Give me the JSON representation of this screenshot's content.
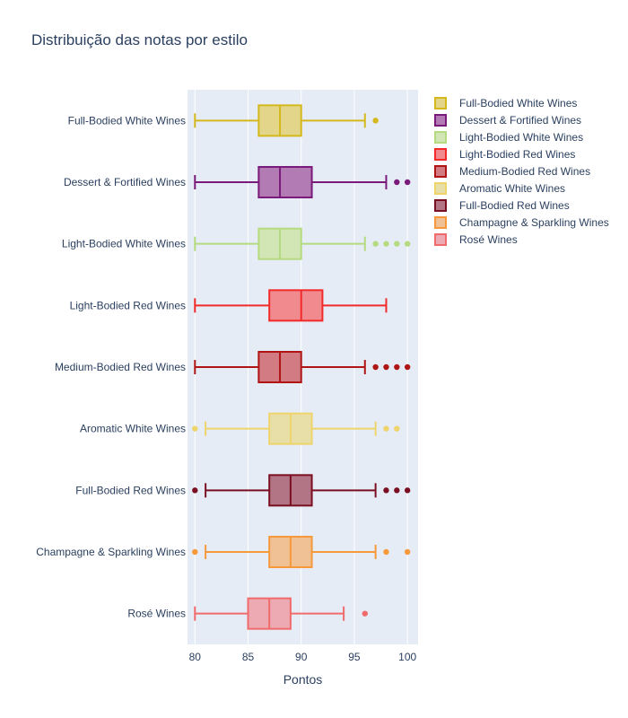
{
  "chart_data": {
    "type": "box",
    "title": "Distribuição das notas por estilo",
    "xlabel": "Pontos",
    "ylabel": "",
    "orientation": "horizontal",
    "xlim": [
      79.3,
      101.0
    ],
    "xticks": [
      80,
      85,
      90,
      95,
      100
    ],
    "grid": true,
    "legend_position": "top-right",
    "series": [
      {
        "name": "Full-Bodied White Wines",
        "min": 80,
        "q1": 86,
        "median": 88,
        "q3": 90,
        "max": 96,
        "outliers": [
          97
        ],
        "color": "#d4b81c",
        "fill": "#e3d68a"
      },
      {
        "name": "Dessert & Fortified Wines",
        "min": 80,
        "q1": 86,
        "median": 88,
        "q3": 91,
        "max": 98,
        "outliers": [
          99,
          100
        ],
        "color": "#7a1a7a",
        "fill": "#b27bb4"
      },
      {
        "name": "Light-Bodied White Wines",
        "min": 80,
        "q1": 86,
        "median": 88,
        "q3": 90,
        "max": 96,
        "outliers": [
          97,
          98,
          99,
          100
        ],
        "color": "#b5da7f",
        "fill": "#d2e6b5"
      },
      {
        "name": "Light-Bodied Red Wines",
        "min": 80,
        "q1": 87,
        "median": 90,
        "q3": 92,
        "max": 98,
        "outliers": [],
        "color": "#f22a2a",
        "fill": "#f18a8e"
      },
      {
        "name": "Medium-Bodied Red Wines",
        "min": 80,
        "q1": 86,
        "median": 88,
        "q3": 90,
        "max": 96,
        "outliers": [
          97,
          98,
          99,
          100
        ],
        "color": "#b01515",
        "fill": "#d37b82"
      },
      {
        "name": "Aromatic White Wines",
        "min": 81,
        "q1": 87,
        "median": 89,
        "q3": 91,
        "max": 97,
        "outliers": [
          80,
          98,
          99
        ],
        "color": "#eed46a",
        "fill": "#e8dfa8"
      },
      {
        "name": "Full-Bodied Red Wines",
        "min": 81,
        "q1": 87,
        "median": 89,
        "q3": 91,
        "max": 97,
        "outliers": [
          80,
          98,
          99,
          100
        ],
        "color": "#7a0f22",
        "fill": "#b27586"
      },
      {
        "name": "Champagne & Sparkling Wines",
        "min": 81,
        "q1": 87,
        "median": 89,
        "q3": 91,
        "max": 97,
        "outliers": [
          80,
          98,
          100
        ],
        "color": "#f6993b",
        "fill": "#f0c194"
      },
      {
        "name": "Rosé Wines",
        "min": 80,
        "q1": 85,
        "median": 87,
        "q3": 89,
        "max": 94,
        "outliers": [
          96
        ],
        "color": "#f06b6b",
        "fill": "#eeaab3"
      }
    ]
  }
}
